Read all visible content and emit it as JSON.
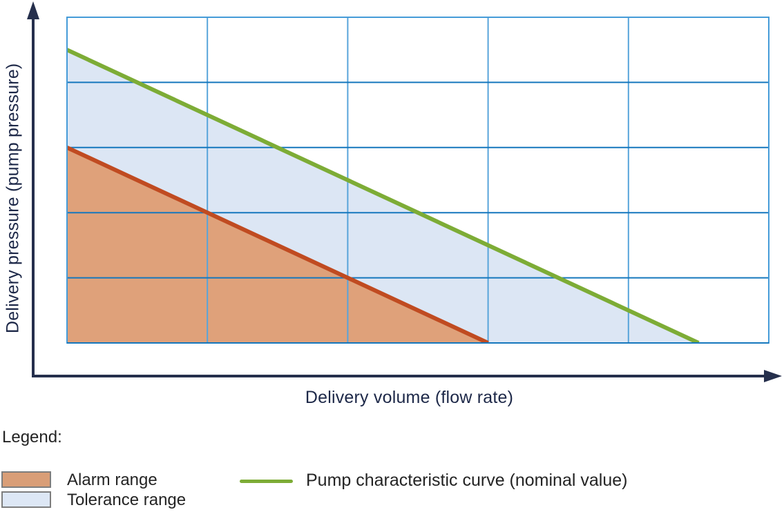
{
  "axes": {
    "x_label": "Delivery volume (flow rate)",
    "y_label": "Delivery pressure (pump pressure)",
    "axis_color": "#252f4c",
    "label_color": "#1d2848"
  },
  "legend": {
    "title": "Legend:",
    "text_color": "#242424",
    "swatch_border": "#7d7d7d",
    "items": [
      {
        "label": "Alarm range",
        "swatch_color": "#d99e77",
        "kind": "area"
      },
      {
        "label": "Tolerance range",
        "swatch_color": "#dde7f5",
        "kind": "area"
      },
      {
        "label": "Pump characteristic curve (nominal value)",
        "swatch_color": "#7dac36",
        "kind": "line"
      }
    ]
  },
  "chart_data": {
    "type": "area",
    "title": "",
    "xlabel": "Delivery volume (flow rate)",
    "ylabel": "Delivery pressure (pump pressure)",
    "x_range": [
      0,
      5
    ],
    "y_range": [
      0,
      5
    ],
    "x_tick_labels": [],
    "y_tick_labels": [],
    "grid": {
      "cols": 5,
      "rows": 5,
      "border_color": "#459bd8",
      "h_line_color": "#1577bd",
      "v_line_color": "#57a4da"
    },
    "series": [
      {
        "name": "Tolerance range",
        "kind": "area",
        "fill": "#dce6f4",
        "points": [
          [
            0,
            0
          ],
          [
            0,
            4.5
          ],
          [
            4.5,
            0
          ]
        ]
      },
      {
        "name": "Alarm range",
        "kind": "area",
        "fill": "#dfa17a",
        "points": [
          [
            0,
            0
          ],
          [
            0,
            3
          ],
          [
            3,
            0
          ]
        ]
      },
      {
        "name": "Alarm range upper boundary",
        "kind": "line",
        "stroke": "#c04b21",
        "width": 6,
        "points": [
          [
            0,
            3
          ],
          [
            3,
            0
          ]
        ]
      },
      {
        "name": "Pump characteristic curve (nominal value)",
        "kind": "line",
        "stroke": "#7dac36",
        "width": 6,
        "points": [
          [
            0,
            4.5
          ],
          [
            4.5,
            0
          ]
        ]
      }
    ],
    "legend_position": "bottom",
    "notes": "No numeric tick labels shown; both lines are parallel (slope -1 grid cell per cell); nominal curve runs (0,4.5)-(4.5,0); alarm boundary runs (0,3)-(3,0)."
  }
}
